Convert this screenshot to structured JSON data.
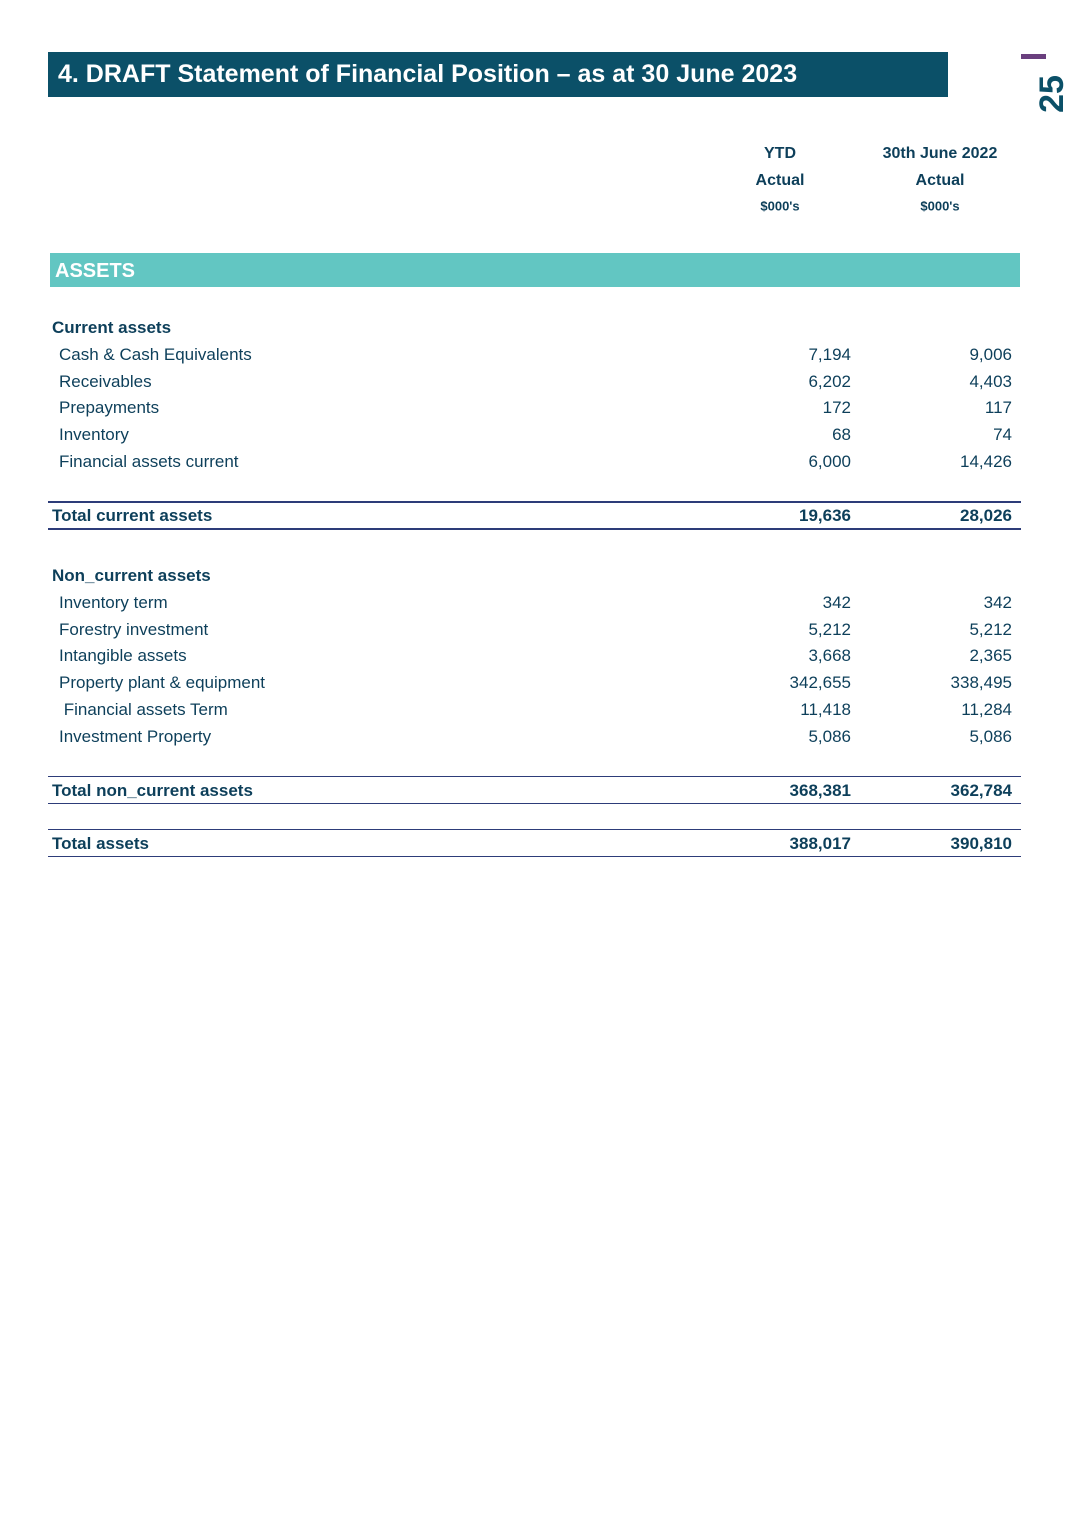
{
  "title": "4. DRAFT Statement of Financial Position – as at 30 June 2023",
  "page_number": "25",
  "columns": [
    {
      "line1": "YTD",
      "line2": "Actual",
      "line3": "$000's"
    },
    {
      "line1": "30th June 2022",
      "line2": "Actual",
      "line3": "$000's"
    }
  ],
  "section": "ASSETS",
  "groups": [
    {
      "heading": "Current assets",
      "rows": [
        {
          "label": "Cash & Cash Equivalents",
          "values": [
            "7,194",
            "9,006"
          ]
        },
        {
          "label": "Receivables",
          "values": [
            "6,202",
            "4,403"
          ]
        },
        {
          "label": "Prepayments",
          "values": [
            "172",
            "117"
          ]
        },
        {
          "label": "Inventory",
          "values": [
            "68",
            "74"
          ]
        },
        {
          "label": "Financial assets current",
          "values": [
            "6,000",
            "14,426"
          ]
        }
      ],
      "total": {
        "label": "Total current assets",
        "values": [
          "19,636",
          "28,026"
        ]
      }
    },
    {
      "heading": "Non_current assets",
      "rows": [
        {
          "label": "Inventory term",
          "values": [
            "342",
            "342"
          ]
        },
        {
          "label": "Forestry investment",
          "values": [
            "5,212",
            "5,212"
          ]
        },
        {
          "label": "Intangible assets",
          "values": [
            "3,668",
            "2,365"
          ]
        },
        {
          "label": "Property plant & equipment",
          "values": [
            "342,655",
            "338,495"
          ]
        },
        {
          "label": " Financial assets Term",
          "values": [
            "11,418",
            "11,284"
          ]
        },
        {
          "label": "Investment Property",
          "values": [
            "5,086",
            "5,086"
          ]
        }
      ],
      "total": {
        "label": "Total non_current assets",
        "values": [
          "368,381",
          "362,784"
        ]
      }
    }
  ],
  "grand_total": {
    "label": "Total assets",
    "values": [
      "388,017",
      "390,810"
    ]
  }
}
